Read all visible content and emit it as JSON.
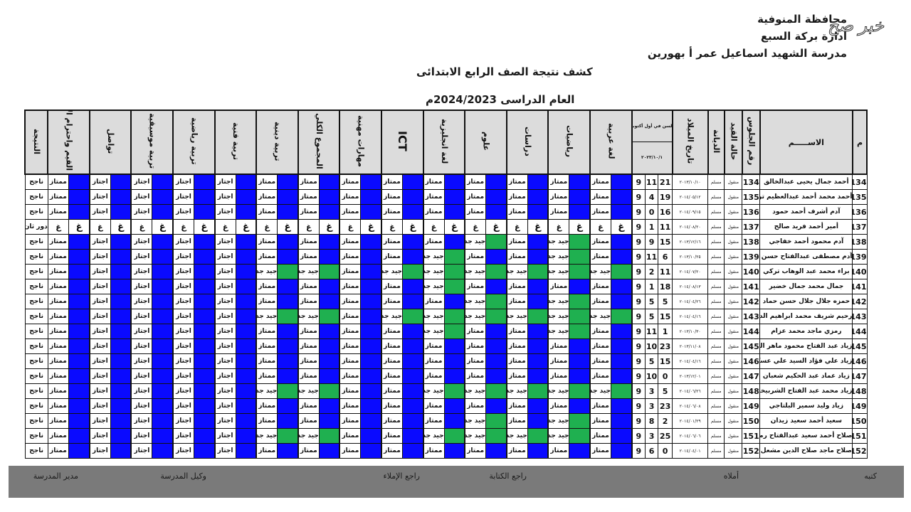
{
  "header": {
    "governorate": "محافظة المنوفية",
    "administration": "ادارة بركة السبع",
    "school": "مدرسة الشهيد اسماعيل عمر أ بهورين",
    "title": "كشف نتيجة الصف الرابع الابتدائى",
    "academic_year": "العام الدراسى 2024/2023م"
  },
  "watermark": "خبر صح",
  "columns": {
    "serial": "م",
    "name": "الاســـــم",
    "seat": "رقم الجلوس",
    "status": "حالة القيد",
    "religion": "الديانة",
    "birth_date": "تاريخ الميلاد",
    "age_title": "السن في أول أكتوبر",
    "age_date": "٢٠٢٣/١٠/١",
    "result": "النتيجة"
  },
  "subjects": [
    "لغة عربية",
    "رياضيات",
    "دراسات",
    "علوم",
    "لغة انجليزية",
    "ICT",
    "مهارات مهنية",
    "المجموع الكلي",
    "تربية دينية",
    "تربية فنية",
    "تربية رياضية",
    "تربية موسيقية",
    "تواصل",
    "القيم واحترام الآخر"
  ],
  "grade_colors": {
    "ممتاز": "#0a0aff",
    "اجتاز": "#0a0aff",
    "جيد جدا": "#1fb050",
    "غ": "#ffffff"
  },
  "students": [
    {
      "no": "134",
      "name": "أحمد جمال يحيى عبدالخالق",
      "seat": "134",
      "status": "منقول",
      "religion": "مسلم",
      "birth": "٢٠١٣/١٠/١٠",
      "age": [
        "9",
        "11",
        "21"
      ],
      "grades": [
        "ممتاز",
        "ممتاز",
        "ممتاز",
        "ممتاز",
        "ممتاز",
        "ممتاز",
        "ممتاز",
        "ممتاز",
        "ممتاز",
        "اجتاز",
        "اجتاز",
        "اجتاز",
        "اجتاز",
        "ممتاز"
      ],
      "result": "ناجح"
    },
    {
      "no": "135",
      "name": "أحمد محمد أحمد عبدالعظيم تركي",
      "seat": "135",
      "status": "منقول",
      "religion": "مسلم",
      "birth": "٢٠١٤/٠٥/١٢",
      "age": [
        "9",
        "4",
        "19"
      ],
      "grades": [
        "ممتاز",
        "ممتاز",
        "ممتاز",
        "ممتاز",
        "ممتاز",
        "ممتاز",
        "ممتاز",
        "ممتاز",
        "ممتاز",
        "اجتاز",
        "اجتاز",
        "اجتاز",
        "اجتاز",
        "ممتاز"
      ],
      "result": "ناجح"
    },
    {
      "no": "136",
      "name": "آدم أشرف أحمد حمود",
      "seat": "136",
      "status": "منقول",
      "religion": "مسلم",
      "birth": "٢٠١٤/٠٩/١٥",
      "age": [
        "9",
        "0",
        "16"
      ],
      "grades": [
        "ممتاز",
        "ممتاز",
        "ممتاز",
        "ممتاز",
        "ممتاز",
        "ممتاز",
        "ممتاز",
        "ممتاز",
        "ممتاز",
        "اجتاز",
        "اجتاز",
        "اجتاز",
        "اجتاز",
        "ممتاز"
      ],
      "result": "ناجح"
    },
    {
      "no": "137",
      "name": "أمير أحمد فريد صالح",
      "seat": "137",
      "status": "منقول",
      "religion": "مسلم",
      "birth": "٢٠١٤/٠٨/٢٠",
      "age": [
        "9",
        "1",
        "11"
      ],
      "grades": [
        "غ",
        "غ",
        "غ",
        "غ",
        "غ",
        "غ",
        "غ",
        "غ",
        "غ",
        "غ",
        "غ",
        "غ",
        "غ",
        "غ"
      ],
      "result": "دور ثان"
    },
    {
      "no": "138",
      "name": "آدم محمود أحمد خفاجي",
      "seat": "138",
      "status": "منقول",
      "religion": "مسلم",
      "birth": "٢٠١٣/١٢/١٦",
      "age": [
        "9",
        "9",
        "15"
      ],
      "grades": [
        "ممتاز",
        "جيد جدا",
        "ممتاز",
        "جيد جدا",
        "ممتاز",
        "ممتاز",
        "ممتاز",
        "ممتاز",
        "ممتاز",
        "اجتاز",
        "اجتاز",
        "اجتاز",
        "اجتاز",
        "ممتاز"
      ],
      "result": "ناجح"
    },
    {
      "no": "139",
      "name": "آدم مصطفى عبدالفتاح حسن مصطفى",
      "seat": "139",
      "status": "منقول",
      "religion": "مسلم",
      "birth": "٢٠١٣/١٠/٢٥",
      "age": [
        "9",
        "11",
        "6"
      ],
      "grades": [
        "ممتاز",
        "جيد جدا",
        "ممتاز",
        "ممتاز",
        "جيد جدا",
        "ممتاز",
        "ممتاز",
        "ممتاز",
        "ممتاز",
        "اجتاز",
        "اجتاز",
        "اجتاز",
        "اجتاز",
        "ممتاز"
      ],
      "result": "ناجح"
    },
    {
      "no": "140",
      "name": "براء محمد عبد الوهاب تركي",
      "seat": "140",
      "status": "منقول",
      "religion": "مسلم",
      "birth": "٢٠١٤/٠٧/٢٠",
      "age": [
        "9",
        "2",
        "11"
      ],
      "grades": [
        "جيد جدا",
        "جيد جدا",
        "جيد جدا",
        "جيد جدا",
        "جيد جدا",
        "جيد جدا",
        "ممتاز",
        "جيد جدا",
        "جيد جدا",
        "اجتاز",
        "اجتاز",
        "اجتاز",
        "اجتاز",
        "ممتاز"
      ],
      "result": "ناجح"
    },
    {
      "no": "141",
      "name": "جمال محمد جمال خضير",
      "seat": "141",
      "status": "منقول",
      "religion": "مسلم",
      "birth": "٢٠١٤/٠٨/١٣",
      "age": [
        "9",
        "1",
        "18"
      ],
      "grades": [
        "ممتاز",
        "ممتاز",
        "ممتاز",
        "ممتاز",
        "جيد جدا",
        "ممتاز",
        "ممتاز",
        "ممتاز",
        "ممتاز",
        "اجتاز",
        "اجتاز",
        "اجتاز",
        "اجتاز",
        "ممتاز"
      ],
      "result": "ناجح"
    },
    {
      "no": "142",
      "name": "حمزه جلال جلال حسن حماد",
      "seat": "142",
      "status": "منقول",
      "religion": "مسلم",
      "birth": "٢٠١٤/٠٤/٢٦",
      "age": [
        "9",
        "5",
        "5"
      ],
      "grades": [
        "ممتاز",
        "جيد جدا",
        "ممتاز",
        "جيد جدا",
        "ممتاز",
        "ممتاز",
        "ممتاز",
        "ممتاز",
        "ممتاز",
        "اجتاز",
        "اجتاز",
        "اجتاز",
        "اجتاز",
        "ممتاز"
      ],
      "result": "ناجح"
    },
    {
      "no": "143",
      "name": "رحيم شريف محمد ابراهيم الدسوقي",
      "seat": "143",
      "status": "منقول",
      "religion": "مسلم",
      "birth": "٢٠١٤/٠٤/١٦",
      "age": [
        "9",
        "5",
        "15"
      ],
      "grades": [
        "جيد جدا",
        "جيد جدا",
        "جيد جدا",
        "جيد جدا",
        "جيد جدا",
        "جيد جدا",
        "ممتاز",
        "جيد جدا",
        "جيد جدا",
        "اجتاز",
        "اجتاز",
        "اجتاز",
        "اجتاز",
        "ممتاز"
      ],
      "result": "ناجح"
    },
    {
      "no": "144",
      "name": "رمزي ماجد محمد عزام",
      "seat": "144",
      "status": "منقول",
      "religion": "مسلم",
      "birth": "٢٠١٣/١٠/٣٠",
      "age": [
        "9",
        "11",
        "1"
      ],
      "grades": [
        "ممتاز",
        "جيد جدا",
        "ممتاز",
        "ممتاز",
        "جيد جدا",
        "ممتاز",
        "ممتاز",
        "ممتاز",
        "ممتاز",
        "اجتاز",
        "اجتاز",
        "اجتاز",
        "اجتاز",
        "ممتاز"
      ],
      "result": "ناجح"
    },
    {
      "no": "145",
      "name": "زياد عبد الفتاح محمود ماهر الحطبة",
      "seat": "145",
      "status": "منقول",
      "religion": "مسلم",
      "birth": "٢٠١٣/١١/٠٨",
      "age": [
        "9",
        "10",
        "23"
      ],
      "grades": [
        "ممتاز",
        "ممتاز",
        "ممتاز",
        "ممتاز",
        "ممتاز",
        "ممتاز",
        "ممتاز",
        "ممتاز",
        "ممتاز",
        "اجتاز",
        "اجتاز",
        "اجتاز",
        "اجتاز",
        "ممتاز"
      ],
      "result": "ناجح"
    },
    {
      "no": "146",
      "name": "زياد علي فؤاد السيد علي عسكر",
      "seat": "146",
      "status": "منقول",
      "religion": "مسلم",
      "birth": "٢٠١٤/٠٤/١٦",
      "age": [
        "9",
        "5",
        "15"
      ],
      "grades": [
        "ممتاز",
        "ممتاز",
        "ممتاز",
        "ممتاز",
        "ممتاز",
        "ممتاز",
        "ممتاز",
        "ممتاز",
        "ممتاز",
        "اجتاز",
        "اجتاز",
        "اجتاز",
        "اجتاز",
        "ممتاز"
      ],
      "result": "ناجح"
    },
    {
      "no": "147",
      "name": "زياد عماد عبد الحكيم شعبان",
      "seat": "147",
      "status": "منقول",
      "religion": "مسلم",
      "birth": "٢٠١٣/١٢/٠١",
      "age": [
        "9",
        "10",
        "0"
      ],
      "grades": [
        "ممتاز",
        "ممتاز",
        "ممتاز",
        "ممتاز",
        "ممتاز",
        "ممتاز",
        "ممتاز",
        "ممتاز",
        "ممتاز",
        "اجتاز",
        "اجتاز",
        "اجتاز",
        "اجتاز",
        "ممتاز"
      ],
      "result": "ناجح"
    },
    {
      "no": "148",
      "name": "زياد محمد عبد الفتاح الشربيخوني",
      "seat": "148",
      "status": "منقول",
      "religion": "مسلم",
      "birth": "٢٠١٤/٠٦/٢٦",
      "age": [
        "9",
        "3",
        "5"
      ],
      "grades": [
        "جيد جدا",
        "جيد جدا",
        "جيد جدا",
        "جيد جدا",
        "جيد جدا",
        "ممتاز",
        "ممتاز",
        "جيد جدا",
        "جيد جدا",
        "اجتاز",
        "اجتاز",
        "اجتاز",
        "اجتاز",
        "ممتاز"
      ],
      "result": "ناجح"
    },
    {
      "no": "149",
      "name": "زياد وليد سمير البلتاجي",
      "seat": "149",
      "status": "منقول",
      "religion": "مسلم",
      "birth": "٢٠١٤/٠٦/٠٨",
      "age": [
        "9",
        "3",
        "23"
      ],
      "grades": [
        "ممتاز",
        "ممتاز",
        "ممتاز",
        "ممتاز",
        "ممتاز",
        "ممتاز",
        "ممتاز",
        "ممتاز",
        "ممتاز",
        "اجتاز",
        "اجتاز",
        "اجتاز",
        "اجتاز",
        "ممتاز"
      ],
      "result": "ناجح"
    },
    {
      "no": "150",
      "name": "سعيد أحمد سعيد زيدان",
      "seat": "150",
      "status": "منقول",
      "religion": "مسلم",
      "birth": "٢٠١٤/٠١/٢٩",
      "age": [
        "9",
        "8",
        "2"
      ],
      "grades": [
        "ممتاز",
        "جيد جدا",
        "ممتاز",
        "جيد جدا",
        "ممتاز",
        "ممتاز",
        "ممتاز",
        "ممتاز",
        "ممتاز",
        "اجتاز",
        "اجتاز",
        "اجتاز",
        "اجتاز",
        "ممتاز"
      ],
      "result": "ناجح"
    },
    {
      "no": "151",
      "name": "صلاح أحمد سعيد عبدالفتاح رمضان",
      "seat": "151",
      "status": "منقول",
      "religion": "مسلم",
      "birth": "٢٠١٤/٠٦/٠٦",
      "age": [
        "9",
        "3",
        "25"
      ],
      "grades": [
        "ممتاز",
        "جيد جدا",
        "جيد جدا",
        "جيد جدا",
        "جيد جدا",
        "ممتاز",
        "ممتاز",
        "جيد جدا",
        "جيد جدا",
        "اجتاز",
        "اجتاز",
        "اجتاز",
        "اجتاز",
        "ممتاز"
      ],
      "result": "ناجح"
    },
    {
      "no": "152",
      "name": "صلاح ماجد صلاح الدين مشعل",
      "seat": "152",
      "status": "منقول",
      "religion": "مسلم",
      "birth": "٢٠١٤/٠٤/٠١",
      "age": [
        "9",
        "6",
        "0"
      ],
      "grades": [
        "ممتاز",
        "ممتاز",
        "ممتاز",
        "ممتاز",
        "ممتاز",
        "ممتاز",
        "ممتاز",
        "ممتاز",
        "ممتاز",
        "اجتاز",
        "اجتاز",
        "اجتاز",
        "اجتاز",
        "ممتاز"
      ],
      "result": "ناجح"
    }
  ],
  "footer": {
    "written_by": "كتبه",
    "dictated_by": "أملاه",
    "writing_reviewer": "راجع الكتابة",
    "dictation_reviewer": "راجع الإملاء",
    "deputy": "وكيل المدرسة",
    "principal": "مدير المدرسة"
  }
}
